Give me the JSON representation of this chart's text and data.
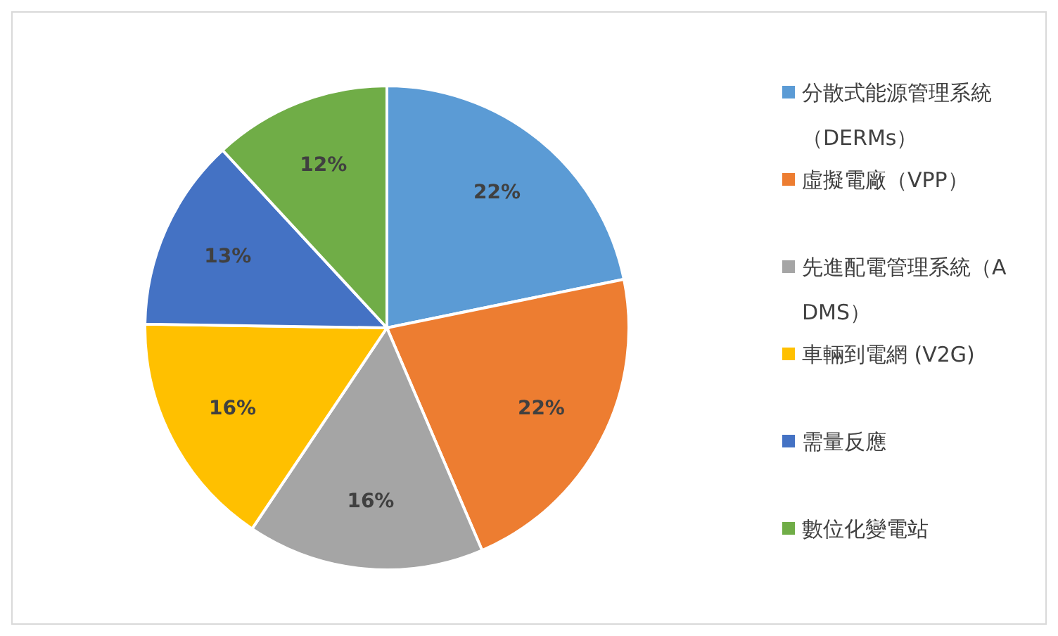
{
  "chart_data": {
    "type": "pie",
    "categories": [
      "分散式能源管理系統（DERMs）",
      "虛擬電廠（VPP）",
      "先進配電管理系統（ADMS）",
      "車輛到電網 (V2G)",
      "需量反應",
      "數位化變電站"
    ],
    "values": [
      22,
      22,
      16,
      16,
      13,
      12
    ],
    "colors": [
      "#5b9bd5",
      "#ed7d31",
      "#a5a5a5",
      "#ffc000",
      "#4472c4",
      "#70ad47"
    ],
    "value_labels": [
      "22%",
      "22%",
      "16%",
      "16%",
      "13%",
      "12%"
    ],
    "legend": "right"
  }
}
